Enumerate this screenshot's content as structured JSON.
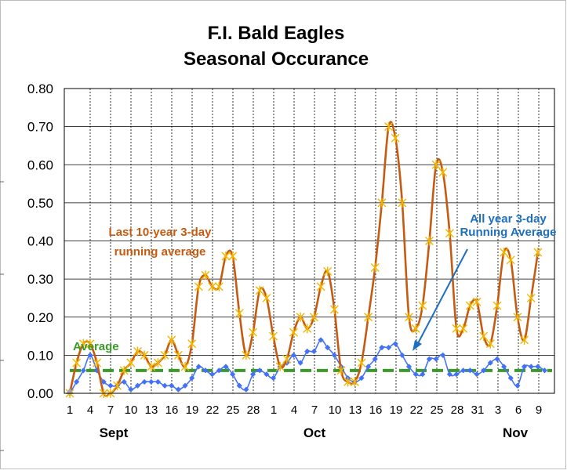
{
  "chart_data": {
    "type": "line",
    "title_lines": [
      "F.I. Bald Eagles",
      "Seasonal Occurance"
    ],
    "xlabel": "",
    "ylabel": "",
    "ylim": [
      0,
      0.8
    ],
    "y_ticks": [
      "0.00",
      "0.10",
      "0.20",
      "0.30",
      "0.40",
      "0.50",
      "0.60",
      "0.70",
      "0.80"
    ],
    "x_tick_labels": [
      "1",
      "4",
      "7",
      "10",
      "13",
      "16",
      "19",
      "22",
      "25",
      "28",
      "1",
      "4",
      "7",
      "10",
      "13",
      "16",
      "19",
      "22",
      "25",
      "28",
      "31",
      "3",
      "6",
      "9"
    ],
    "month_labels": [
      "Sept",
      "Oct",
      "Nov"
    ],
    "grid": true,
    "series": [
      {
        "name": "",
        "color": "#c55a11",
        "marker_color": "#f4b400",
        "values": [
          0.0,
          0.08,
          0.13,
          0.13,
          0.08,
          0.0,
          0.0,
          0.02,
          0.06,
          0.08,
          0.11,
          0.1,
          0.07,
          0.08,
          0.1,
          0.14,
          0.1,
          0.07,
          0.13,
          0.28,
          0.31,
          0.28,
          0.28,
          0.36,
          0.36,
          0.21,
          0.1,
          0.16,
          0.27,
          0.25,
          0.15,
          0.07,
          0.09,
          0.16,
          0.2,
          0.17,
          0.2,
          0.28,
          0.32,
          0.22,
          0.06,
          0.03,
          0.03,
          0.08,
          0.2,
          0.33,
          0.5,
          0.7,
          0.67,
          0.5,
          0.2,
          0.17,
          0.23,
          0.4,
          0.6,
          0.58,
          0.42,
          0.17,
          0.17,
          0.23,
          0.24,
          0.15,
          0.13,
          0.23,
          0.37,
          0.35,
          0.2,
          0.14,
          0.25,
          0.37
        ]
      },
      {
        "name": "",
        "color": "#4472f4",
        "values": [
          0.0,
          0.03,
          0.06,
          0.1,
          0.06,
          0.03,
          0.02,
          0.02,
          0.03,
          0.01,
          0.02,
          0.03,
          0.03,
          0.03,
          0.02,
          0.02,
          0.01,
          0.02,
          0.04,
          0.07,
          0.06,
          0.05,
          0.06,
          0.07,
          0.05,
          0.02,
          0.01,
          0.05,
          0.06,
          0.05,
          0.04,
          0.07,
          0.08,
          0.1,
          0.08,
          0.11,
          0.11,
          0.14,
          0.12,
          0.1,
          0.07,
          0.04,
          0.03,
          0.04,
          0.07,
          0.09,
          0.12,
          0.12,
          0.13,
          0.1,
          0.07,
          0.05,
          0.05,
          0.09,
          0.09,
          0.1,
          0.05,
          0.05,
          0.06,
          0.06,
          0.05,
          0.06,
          0.08,
          0.09,
          0.07,
          0.04,
          0.02,
          0.07,
          0.07,
          0.07,
          0.06
        ]
      },
      {
        "name": "",
        "color": "#3a9a2a",
        "values": [
          0.06,
          0.06
        ]
      }
    ],
    "annotations": [
      {
        "text_lines": [
          "Last 10-year 3-day",
          "running average"
        ],
        "color": "#c55a11"
      },
      {
        "text_lines": [
          "All year 3-day",
          "Running Average"
        ],
        "color": "#1f6fc0"
      },
      {
        "text_lines": [
          "Average"
        ],
        "color": "#3a9a2a"
      }
    ]
  }
}
